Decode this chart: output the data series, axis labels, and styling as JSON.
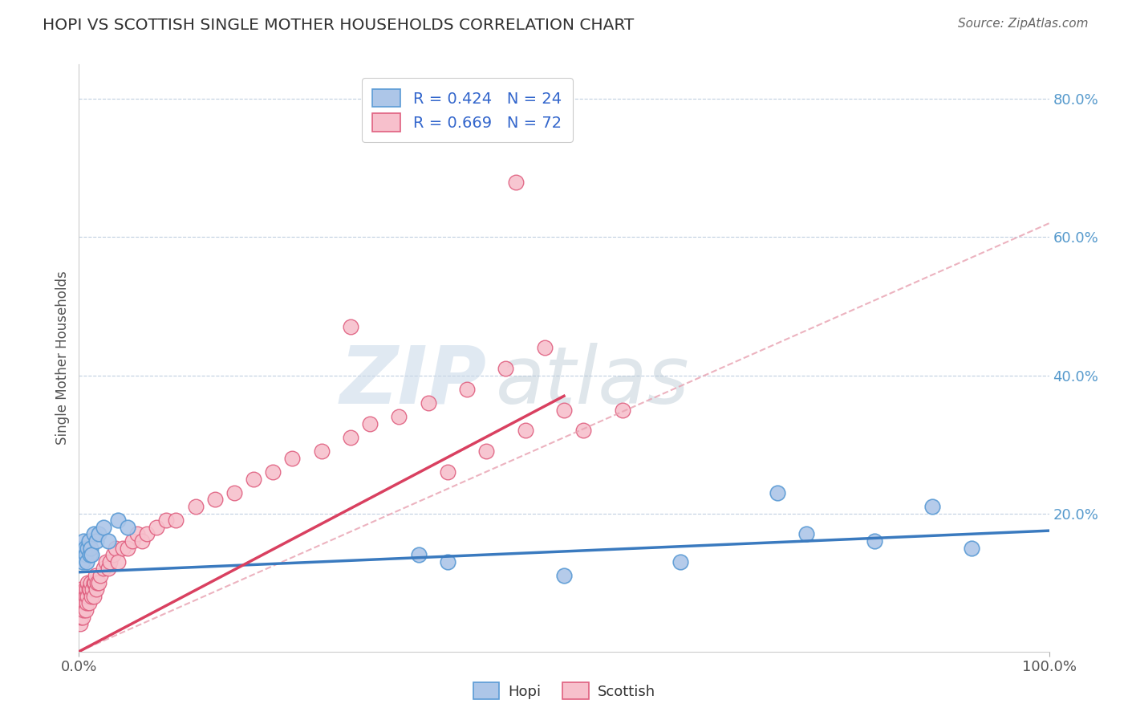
{
  "title": "HOPI VS SCOTTISH SINGLE MOTHER HOUSEHOLDS CORRELATION CHART",
  "source": "Source: ZipAtlas.com",
  "ylabel": "Single Mother Households",
  "xlim": [
    0,
    1.0
  ],
  "ylim": [
    0,
    0.85
  ],
  "xticklabels": [
    "0.0%",
    "100.0%"
  ],
  "hopi_color": "#adc6e8",
  "hopi_edge_color": "#5b9bd5",
  "scottish_color": "#f7c0cc",
  "scottish_edge_color": "#e06080",
  "hopi_trend_color": "#3a7abf",
  "scottish_trend_solid_color": "#d94060",
  "scottish_trend_dash_color": "#e8a0b0",
  "watermark_zip_color": "#c5d8eb",
  "watermark_atlas_color": "#b8c8d8",
  "legend_color": "#3366cc",
  "ytick_color": "#5599cc",
  "hopi_x": [
    0.002,
    0.003,
    0.004,
    0.005,
    0.006,
    0.007,
    0.008,
    0.009,
    0.01,
    0.011,
    0.012,
    0.013,
    0.015,
    0.018,
    0.02,
    0.025,
    0.03,
    0.04,
    0.05,
    0.35,
    0.38,
    0.5,
    0.62,
    0.72,
    0.75,
    0.82,
    0.88,
    0.92
  ],
  "hopi_y": [
    0.14,
    0.15,
    0.13,
    0.16,
    0.15,
    0.14,
    0.13,
    0.15,
    0.16,
    0.14,
    0.15,
    0.14,
    0.17,
    0.16,
    0.17,
    0.18,
    0.16,
    0.19,
    0.18,
    0.14,
    0.13,
    0.11,
    0.13,
    0.23,
    0.17,
    0.16,
    0.21,
    0.15
  ],
  "scottish_x": [
    0.001,
    0.001,
    0.001,
    0.002,
    0.002,
    0.002,
    0.003,
    0.003,
    0.004,
    0.004,
    0.005,
    0.005,
    0.006,
    0.006,
    0.007,
    0.007,
    0.008,
    0.008,
    0.009,
    0.009,
    0.01,
    0.01,
    0.011,
    0.012,
    0.013,
    0.014,
    0.015,
    0.015,
    0.016,
    0.017,
    0.018,
    0.019,
    0.02,
    0.022,
    0.025,
    0.028,
    0.03,
    0.032,
    0.035,
    0.038,
    0.04,
    0.045,
    0.05,
    0.055,
    0.06,
    0.065,
    0.07,
    0.08,
    0.09,
    0.1,
    0.12,
    0.14,
    0.16,
    0.18,
    0.2,
    0.22,
    0.25,
    0.28,
    0.3,
    0.33,
    0.36,
    0.4,
    0.44,
    0.48,
    0.52,
    0.56,
    0.38,
    0.42,
    0.46,
    0.5,
    0.28,
    0.45
  ],
  "scottish_y": [
    0.04,
    0.06,
    0.08,
    0.05,
    0.07,
    0.09,
    0.06,
    0.08,
    0.05,
    0.07,
    0.06,
    0.08,
    0.07,
    0.09,
    0.06,
    0.08,
    0.07,
    0.09,
    0.08,
    0.1,
    0.07,
    0.09,
    0.09,
    0.1,
    0.08,
    0.09,
    0.08,
    0.1,
    0.1,
    0.11,
    0.09,
    0.1,
    0.1,
    0.11,
    0.12,
    0.13,
    0.12,
    0.13,
    0.14,
    0.15,
    0.13,
    0.15,
    0.15,
    0.16,
    0.17,
    0.16,
    0.17,
    0.18,
    0.19,
    0.19,
    0.21,
    0.22,
    0.23,
    0.25,
    0.26,
    0.28,
    0.29,
    0.31,
    0.33,
    0.34,
    0.36,
    0.38,
    0.41,
    0.44,
    0.32,
    0.35,
    0.26,
    0.29,
    0.32,
    0.35,
    0.47,
    0.68
  ]
}
